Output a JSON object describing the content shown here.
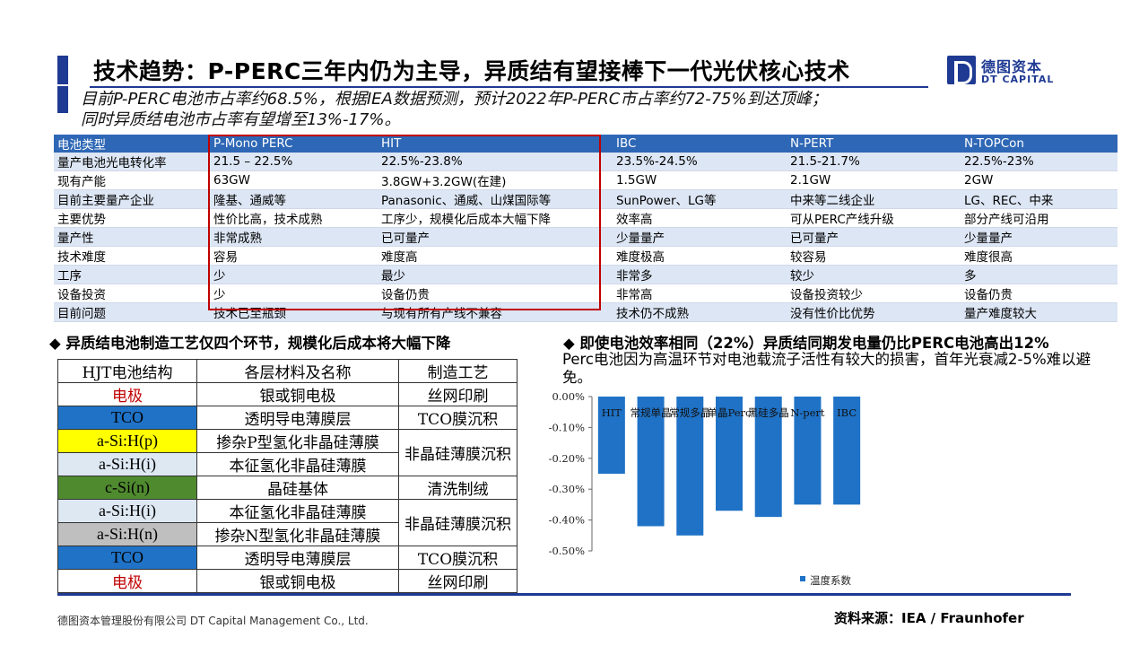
{
  "header": {
    "title": "技术趋势：P-PERC三年内仍为主导，异质结有望接棒下一代光伏核心技术",
    "subtitle_line1": "目前P-PERC电池市占率约68.5%，根据IEA数据预测，预计2022年P-PERC市占率约72-75%到达顶峰；",
    "subtitle_line2": "同时异质结电池市占率有望增至13%-17%。"
  },
  "logo": {
    "cn": "德图资本",
    "en": "DT CAPITAL"
  },
  "comparison_table": {
    "headers": [
      "电池类型",
      "P-Mono PERC",
      "HIT",
      "IBC",
      "N-PERT",
      "N-TOPCon"
    ],
    "rows": [
      [
        "量产电池光电转化率",
        "21.5 – 22.5%",
        "22.5%-23.8%",
        "23.5%-24.5%",
        "21.5-21.7%",
        "22.5%-23%"
      ],
      [
        "现有产能",
        "63GW",
        "3.8GW+3.2GW(在建)",
        "1.5GW",
        "2.1GW",
        "2GW"
      ],
      [
        "目前主要量产企业",
        "隆基、通威等",
        "Panasonic、通威、山煤国际等",
        "SunPower、LG等",
        "中来等二线企业",
        "LG、REC、中来"
      ],
      [
        "主要优势",
        "性价比高，技术成熟",
        "工序少，规模化后成本大幅下降",
        "效率高",
        "可从PERC产线升级",
        "部分产线可沿用"
      ],
      [
        "量产性",
        "非常成熟",
        "已可量产",
        "少量量产",
        "已可量产",
        "少量量产"
      ],
      [
        "技术难度",
        "容易",
        "难度高",
        "难度极高",
        "较容易",
        "难度很高"
      ],
      [
        "工序",
        "少",
        "最少",
        "非常多",
        "较少",
        "多"
      ],
      [
        "设备投资",
        "少",
        "设备仍贵",
        "非常高",
        "设备投资较少",
        "设备仍贵"
      ],
      [
        "目前问题",
        "技术已至瓶颈",
        "与现有所有产线不兼容",
        "技术仍不成熟",
        "没有性价比优势",
        "量产难度较大"
      ]
    ]
  },
  "left_section": {
    "heading": "◆  异质结电池制造工艺仅四个环节，规模化后成本将大幅下降",
    "hjt_headers": [
      "HJT电池结构",
      "各层材料及名称",
      "制造工艺"
    ],
    "hjt_rows": [
      [
        "电极",
        "银或铜电极",
        "丝网印刷"
      ],
      [
        "TCO",
        "透明导电薄膜层",
        "TCO膜沉积"
      ],
      [
        "a-Si:H(p)",
        "掺杂P型氢化非晶硅薄膜",
        "非晶硅薄膜沉积"
      ],
      [
        "a-Si:H(i)",
        "本征氢化非晶硅薄膜",
        ""
      ],
      [
        "c-Si(n)",
        "晶硅基体",
        "清洗制绒"
      ],
      [
        "a-Si:H(i)",
        "本征氢化非晶硅薄膜",
        "非晶硅薄膜沉积"
      ],
      [
        "a-Si:H(n)",
        "掺杂N型氢化非晶硅薄膜",
        ""
      ],
      [
        "TCO",
        "透明导电薄膜层",
        "TCO膜沉积"
      ],
      [
        "电极",
        "银或铜电极",
        "丝网印刷"
      ]
    ],
    "row_colors": [
      "#ffffff",
      "#1f72c6",
      "#ffff00",
      "#dde8f3",
      "#4f8a2f",
      "#dde8f3",
      "#bfbfbf",
      "#1f72c6",
      "#ffffff"
    ],
    "electrode_color": "#c00000"
  },
  "right_section": {
    "heading": "◆  即使电池效率相同（22%）异质结同期发电量仍比PERC电池高出12%",
    "text": "Perc电池因为高温环节对电池载流子活性有较大的损害，首年光衰减2-5%难以避免。"
  },
  "chart_data": {
    "type": "bar",
    "categories": [
      "HIT",
      "常规单晶",
      "常规多晶",
      "单晶Perc",
      "黑硅多晶",
      "N-pert",
      "IBC"
    ],
    "series": [
      {
        "name": "温度系数",
        "values": [
          -0.25,
          -0.42,
          -0.45,
          -0.37,
          -0.39,
          -0.35,
          -0.35
        ],
        "color": "#1f72c6"
      }
    ],
    "ylim": [
      -0.5,
      0
    ],
    "yticks": [
      "0.00%",
      "-0.10%",
      "-0.20%",
      "-0.30%",
      "-0.40%",
      "-0.50%"
    ],
    "grid": false,
    "legend_position": "bottom-left"
  },
  "footer": {
    "company": "德图资本管理股份有限公司  DT Capital Management  Co., Ltd.",
    "source": "资料来源：IEA / Fraunhofer"
  }
}
